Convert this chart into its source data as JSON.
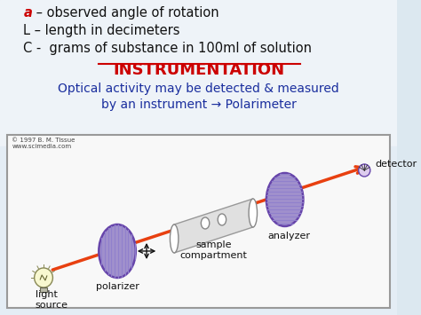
{
  "bg_color": "#dce8f0",
  "top_bg": "#f0f4f8",
  "diagram_bg": "#f8f8f8",
  "line1_a": "a",
  "line1_a_color": "#cc0000",
  "line1_rest": " – observed angle of rotation",
  "line2": "L – length in decimeters",
  "line3": "C -  grams of substance in 100ml of solution",
  "heading": "INSTRUMENTATION",
  "heading_color": "#cc0000",
  "sub1": "Optical activity may be detected & measured",
  "sub2": "by an instrument → Polarimeter",
  "sub_color": "#1a2e9e",
  "copyright": "© 1997 B. M. Tissue\nwww.scimedia.com",
  "lbl_light": "light\nsource",
  "lbl_polarizer": "polarizer",
  "lbl_sample": "sample\ncompartment",
  "lbl_analyzer": "analyzer",
  "lbl_detector": "detector",
  "beam_color": "#e84010",
  "disk_face": "#a090cc",
  "disk_edge": "#6644aa",
  "disk_hatch": "#8878bb",
  "text_color": "#111111",
  "tube_color": "#e0e0e0",
  "diagram_border": "#999999",
  "underline_color": "#cc0000",
  "text_fontsize": 10.5,
  "heading_fontsize": 13,
  "sub_fontsize": 10
}
